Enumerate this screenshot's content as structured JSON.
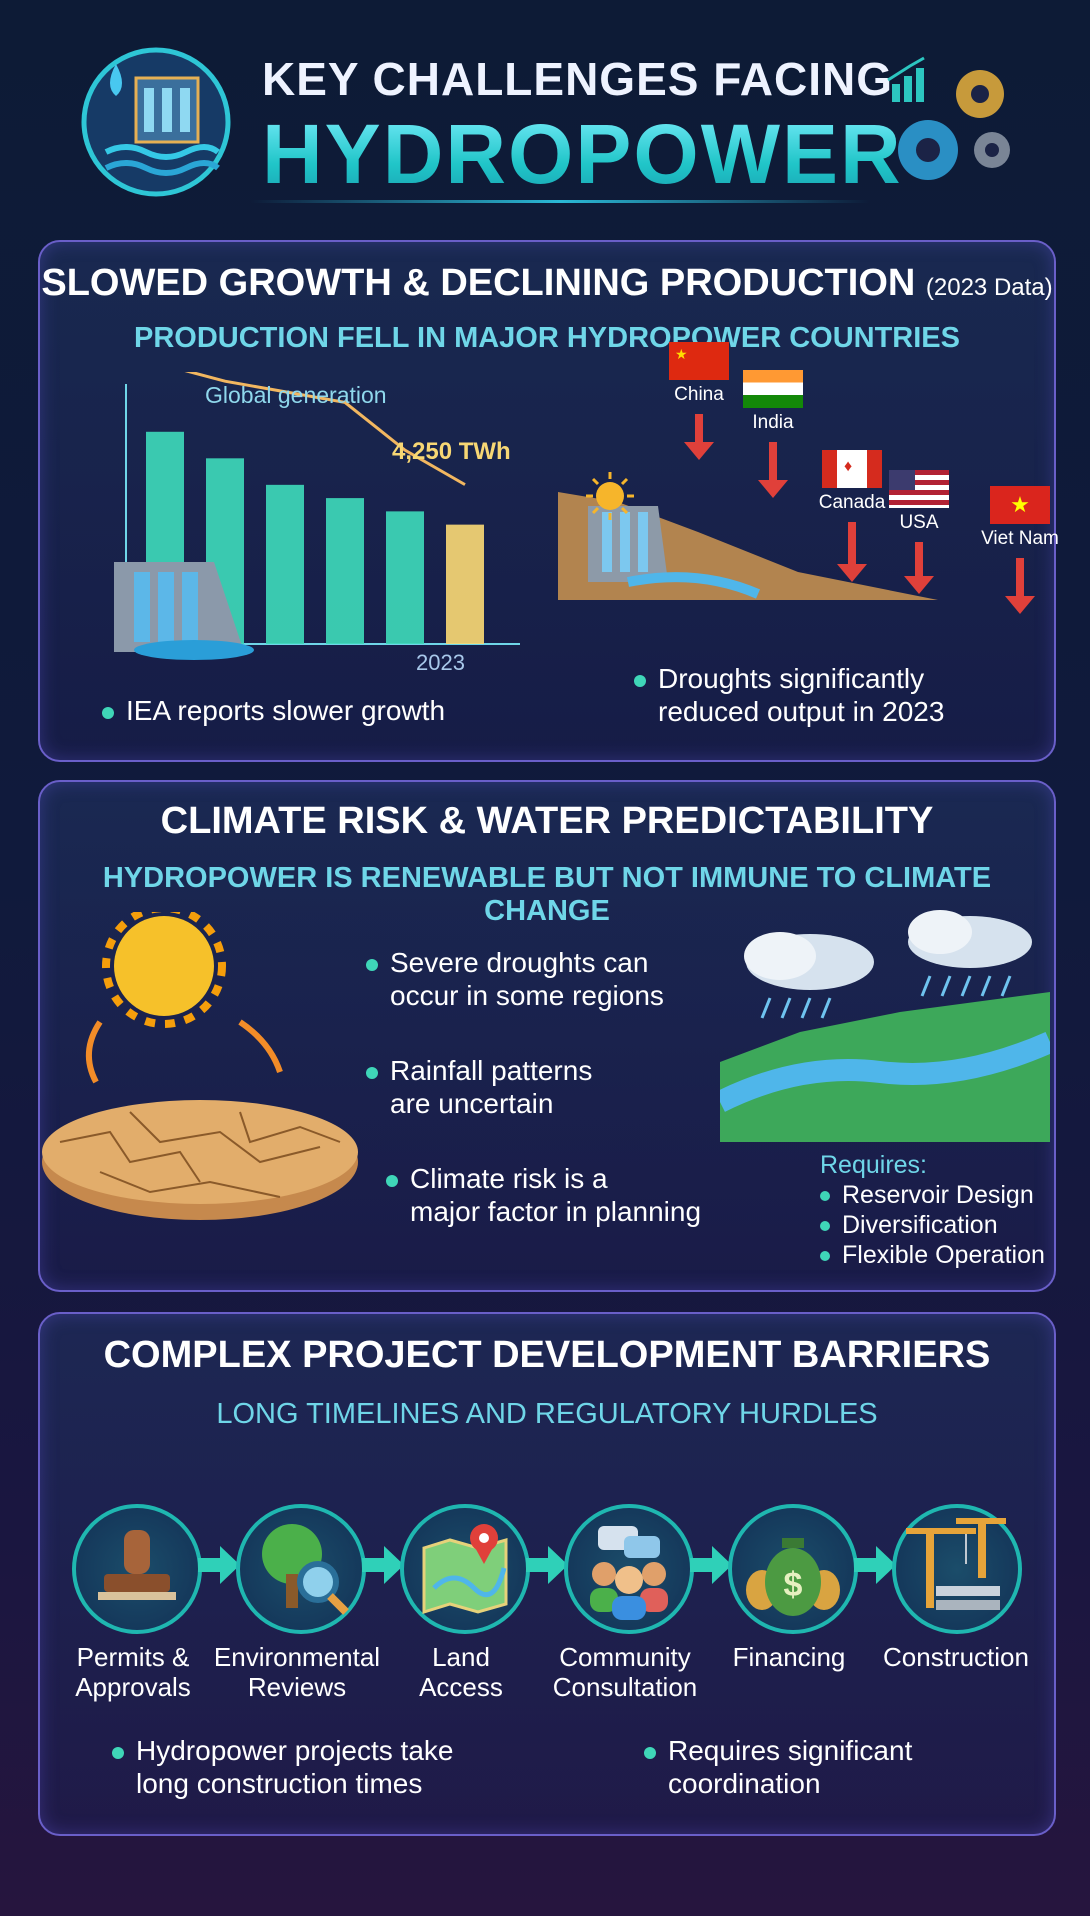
{
  "header": {
    "title_line1": "KEY CHALLENGES FACING",
    "title_line2": "HYDROPOWER"
  },
  "section1": {
    "title": "SLOWED GROWTH & DECLINING PRODUCTION",
    "title_note": "(2023 Data)",
    "subtitle": "PRODUCTION FELL IN MAJOR HYDROPOWER COUNTRIES",
    "chart_label": "Global generation",
    "chart_value_label": "4,250 TWh",
    "chart_year": "2023",
    "countries": [
      "China",
      "India",
      "Canada",
      "USA",
      "Viet Nam"
    ],
    "bullet_left": "IEA reports slower growth",
    "bullet_right_1": "Droughts significantly",
    "bullet_right_2": "reduced output in 2023"
  },
  "chart_data": {
    "type": "bar",
    "title": "Global generation",
    "categories": [
      "",
      "",
      "",
      "",
      "",
      "2023"
    ],
    "values": [
      4600,
      4500,
      4400,
      4350,
      4300,
      4250
    ],
    "trend_line": [
      4700,
      4640,
      4600,
      4560,
      4380,
      4250
    ],
    "annotation": "4,250 TWh",
    "colors": {
      "bars": "#3ed8b8",
      "last_bar": "#f7d774",
      "trend": "#f2b760"
    }
  },
  "section2": {
    "title": "CLIMATE RISK & WATER PREDICTABILITY",
    "subtitle": "HYDROPOWER IS RENEWABLE BUT NOT IMMUNE TO CLIMATE CHANGE",
    "bullets": [
      [
        "Severe droughts can",
        "occur in some regions"
      ],
      [
        "Rainfall patterns",
        "are uncertain"
      ],
      [
        "Climate risk is a",
        "major factor in planning"
      ]
    ],
    "requires_heading": "Requires:",
    "requires": [
      "Reservoir Design",
      "Diversification",
      "Flexible Operation"
    ]
  },
  "section3": {
    "title": "COMPLEX PROJECT DEVELOPMENT BARRIERS",
    "subtitle": "LONG TIMELINES AND REGULATORY HURDLES",
    "steps": [
      [
        "Permits &",
        "Approvals"
      ],
      [
        "Environmental",
        "Reviews"
      ],
      [
        "Land",
        "Access"
      ],
      [
        "Community",
        "Consultation"
      ],
      [
        "Financing",
        ""
      ],
      [
        "Construction",
        ""
      ]
    ],
    "bullet_left": [
      "Hydropower projects take",
      "long construction times"
    ],
    "bullet_right": [
      "Requires significant",
      "coordination"
    ]
  },
  "colors": {
    "accent_teal": "#3fd6b8",
    "subtitle_cyan": "#6fd6e8",
    "panel_border": "#6a5fc9",
    "arrow_red": "#e0403a"
  }
}
